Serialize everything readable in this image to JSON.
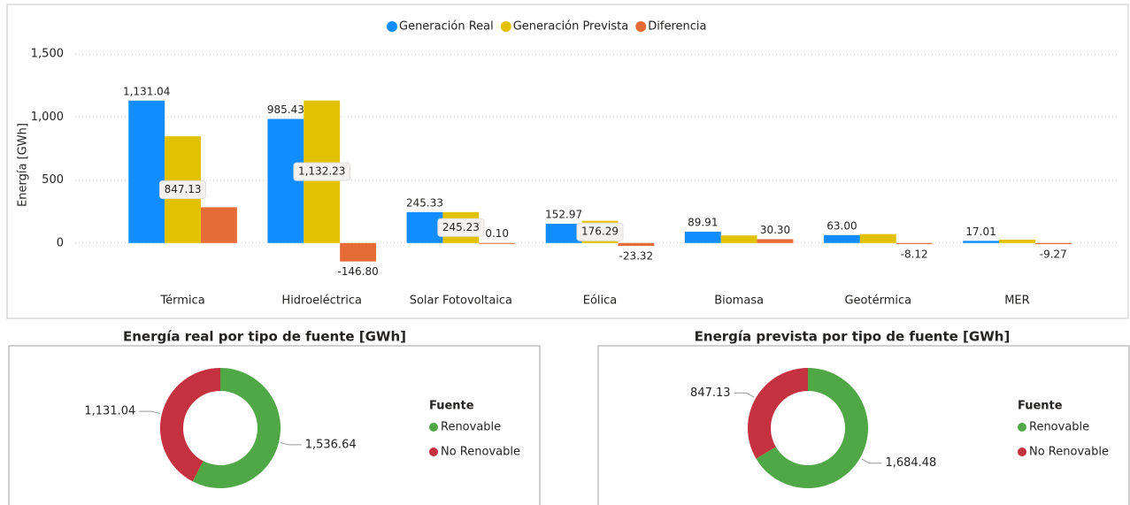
{
  "chart_data": [
    {
      "type": "bar",
      "ylabel": "Energía [GWh]",
      "categories": [
        "Térmica",
        "Hidroeléctrica",
        "Solar Fotovoltaica",
        "Eólica",
        "Biomasa",
        "Geotérmica",
        "MER"
      ],
      "series": [
        {
          "name": "Generación Real",
          "color": "#118DFF",
          "values": [
            1131.04,
            985.43,
            245.33,
            152.97,
            89.91,
            63.0,
            17.01
          ],
          "value_labels": [
            "1,131.04",
            "985.43",
            "245.33",
            "152.97",
            "89.91",
            "63.00",
            "17.01"
          ]
        },
        {
          "name": "Generación Prevista",
          "color": "#E2C200",
          "values": [
            847.13,
            1132.23,
            245.23,
            176.29,
            59.61,
            71.12,
            26.28
          ],
          "value_labels": [
            "847.13",
            "1,132.23",
            "245.23",
            "176.29",
            null,
            null,
            null
          ]
        },
        {
          "name": "Diferencia",
          "color": "#E66C37",
          "values": [
            283.91,
            -146.8,
            0.1,
            -23.32,
            30.3,
            -8.12,
            -9.27
          ],
          "value_labels": [
            null,
            "-146.80",
            "0.10",
            "-23.32",
            "30.30",
            "-8.12",
            "-9.27"
          ]
        }
      ],
      "ylim": [
        -360,
        1600
      ],
      "yticks": [
        0,
        500,
        {
          "value": 1000,
          "label": "1,000"
        },
        {
          "value": 1500,
          "label": "1,500"
        }
      ],
      "grid": true,
      "legend": "top"
    },
    {
      "type": "pie",
      "title": "Energía real por tipo de fuente [GWh]",
      "categories": [
        "Renovable",
        "No Renovable"
      ],
      "values": [
        1536.64,
        1131.04
      ],
      "value_labels": [
        "1,536.64",
        "1,131.04"
      ],
      "colors": [
        "#4FA845",
        "#C4313F"
      ],
      "legend_title": "Fuente",
      "legend": "right"
    },
    {
      "type": "pie",
      "title": "Energía prevista por tipo de fuente [GWh]",
      "categories": [
        "Renovable",
        "No Renovable"
      ],
      "values": [
        1684.48,
        847.13
      ],
      "value_labels": [
        "1,684.48",
        "847.13"
      ],
      "colors": [
        "#4FA845",
        "#C4313F"
      ],
      "legend_title": "Fuente",
      "legend": "right"
    }
  ]
}
